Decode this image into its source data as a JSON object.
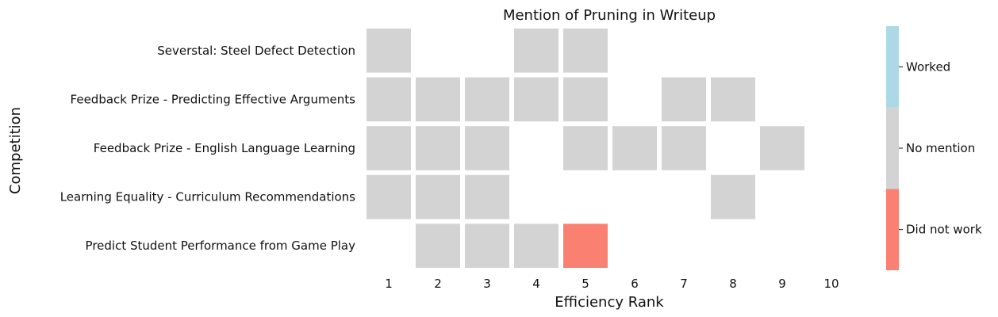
{
  "chart_data": {
    "type": "heatmap",
    "title": "Mention of Pruning in Writeup",
    "xlabel": "Efficiency Rank",
    "ylabel": "Competition",
    "x_ticks": [
      "1",
      "2",
      "3",
      "4",
      "5",
      "6",
      "7",
      "8",
      "9",
      "10"
    ],
    "rows": [
      "Severstal: Steel Defect Detection",
      "Feedback Prize - Predicting Effective Arguments",
      "Feedback Prize - English Language Learning",
      "Learning Equality - Curriculum Recommendations",
      "Predict Student Performance from Game Play"
    ],
    "values": [
      [
        "No mention",
        null,
        null,
        "No mention",
        "No mention",
        null,
        null,
        null,
        null,
        null
      ],
      [
        "No mention",
        "No mention",
        "No mention",
        "No mention",
        "No mention",
        null,
        "No mention",
        "No mention",
        null,
        null
      ],
      [
        "No mention",
        "No mention",
        "No mention",
        null,
        "No mention",
        "No mention",
        "No mention",
        null,
        "No mention",
        null
      ],
      [
        "No mention",
        "No mention",
        "No mention",
        null,
        null,
        null,
        null,
        "No mention",
        null,
        null
      ],
      [
        null,
        "No mention",
        "No mention",
        "No mention",
        "Did not work",
        null,
        null,
        null,
        null,
        null
      ]
    ],
    "categories": [
      "Did not work",
      "No mention",
      "Worked"
    ],
    "colors": {
      "Did not work": "#fa8072",
      "No mention": "#d3d3d3",
      "Worked": "#add8e6"
    },
    "grid": false
  }
}
